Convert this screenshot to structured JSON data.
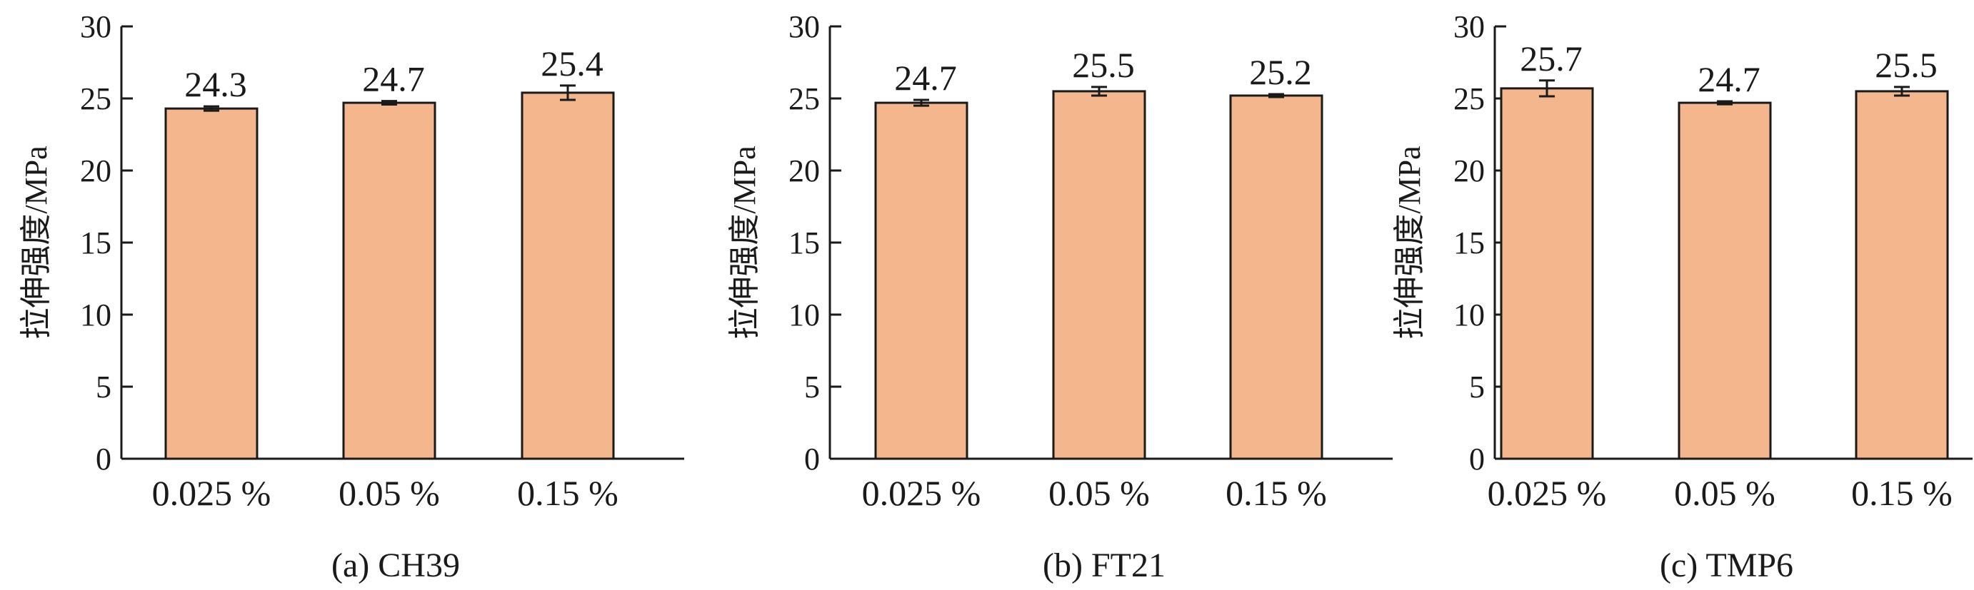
{
  "charts": [
    {
      "type": "bar",
      "panel_label": "(a) CH39",
      "ylabel": "拉伸强度/MPa",
      "categories": [
        "0.025 %",
        "0.05 %",
        "0.15 %"
      ],
      "values": [
        24.3,
        24.7,
        25.4
      ],
      "value_labels": [
        "24.3",
        "24.7",
        "25.4"
      ],
      "error": [
        0.15,
        0.12,
        0.5
      ],
      "ylim": [
        0,
        30
      ],
      "yticks": [
        "0",
        "5",
        "10",
        "15",
        "20",
        "25",
        "30"
      ],
      "bar_color": "#f4b68c",
      "grid": false
    },
    {
      "type": "bar",
      "panel_label": "(b) FT21",
      "ylabel": "拉伸强度/MPa",
      "categories": [
        "0.025 %",
        "0.05 %",
        "0.15 %"
      ],
      "values": [
        24.7,
        25.5,
        25.2
      ],
      "value_labels": [
        "24.7",
        "25.5",
        "25.2"
      ],
      "error": [
        0.2,
        0.3,
        0.1
      ],
      "ylim": [
        0,
        30
      ],
      "yticks": [
        "0",
        "5",
        "10",
        "15",
        "20",
        "25",
        "30"
      ],
      "bar_color": "#f4b68c",
      "grid": false
    },
    {
      "type": "bar",
      "panel_label": "(c) TMP6",
      "ylabel": "拉伸强度/MPa",
      "categories": [
        "0.025 %",
        "0.05 %",
        "0.15 %"
      ],
      "values": [
        25.7,
        24.7,
        25.5
      ],
      "value_labels": [
        "25.7",
        "24.7",
        "25.5"
      ],
      "error": [
        0.55,
        0.1,
        0.3
      ],
      "ylim": [
        0,
        30
      ],
      "yticks": [
        "0",
        "5",
        "10",
        "15",
        "20",
        "25",
        "30"
      ],
      "bar_color": "#f4b68c",
      "grid": false
    }
  ]
}
